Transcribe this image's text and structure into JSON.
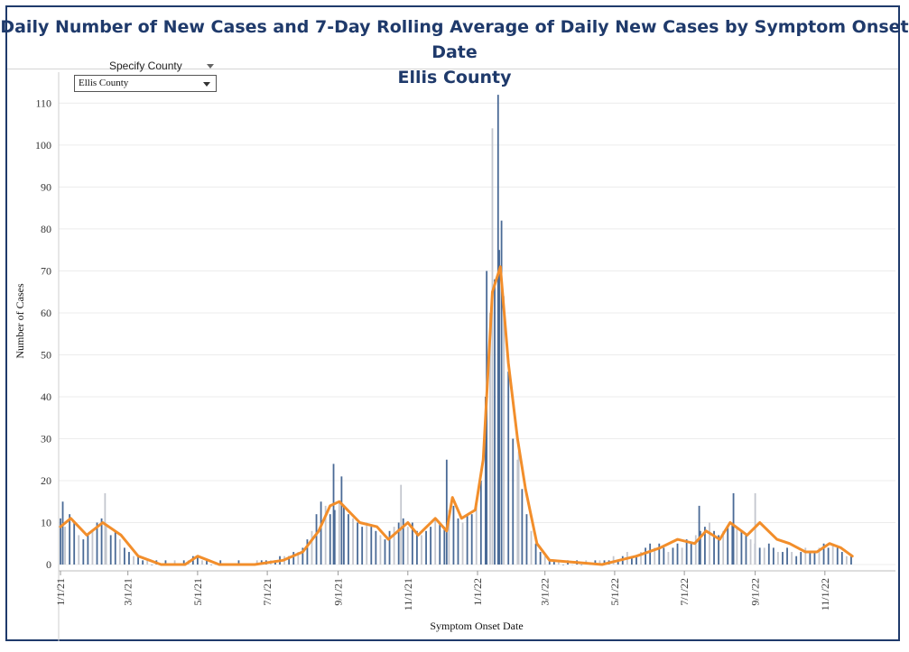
{
  "title": {
    "line1": "Daily Number of New Cases and 7-Day Rolling Average of Daily New Cases by Symptom Onset Date",
    "line2": "Ellis County"
  },
  "filter": {
    "label": "Specify County",
    "selected": "Ellis County"
  },
  "colors": {
    "title": "#1f3a6b",
    "bar_dark": "#4a6a96",
    "bar_light": "#c3c6ce",
    "avg_line": "#f28e2b"
  },
  "chart_data": {
    "type": "bar",
    "xlabel": "Symptom Onset Date",
    "ylabel": "Number of Cases",
    "ylim": [
      0,
      115
    ],
    "yticks": [
      0,
      10,
      20,
      30,
      40,
      50,
      60,
      70,
      80,
      90,
      100,
      110
    ],
    "x_range": [
      "2021-01-01",
      "2022-11-28"
    ],
    "xticks": [
      {
        "date": "2021-01-01",
        "label": "1/1/21"
      },
      {
        "date": "2021-03-01",
        "label": "3/1/21"
      },
      {
        "date": "2021-05-01",
        "label": "5/1/21"
      },
      {
        "date": "2021-07-01",
        "label": "7/1/21"
      },
      {
        "date": "2021-09-01",
        "label": "9/1/21"
      },
      {
        "date": "2021-11-01",
        "label": "11/1/21"
      },
      {
        "date": "2022-01-01",
        "label": "1/1/22"
      },
      {
        "date": "2022-03-01",
        "label": "3/1/22"
      },
      {
        "date": "2022-05-01",
        "label": "5/1/22"
      },
      {
        "date": "2022-07-01",
        "label": "7/1/22"
      },
      {
        "date": "2022-09-01",
        "label": "9/1/22"
      },
      {
        "date": "2022-11-01",
        "label": "11/1/22"
      }
    ],
    "grid": true,
    "series": [
      {
        "kind": "bar",
        "points": [
          [
            "2021-01-01",
            11
          ],
          [
            "2021-01-05",
            9
          ],
          [
            "2021-01-09",
            12
          ],
          [
            "2021-01-13",
            10
          ],
          [
            "2021-01-17",
            7
          ],
          [
            "2021-01-21",
            6
          ],
          [
            "2021-01-25",
            7
          ],
          [
            "2021-01-29",
            8
          ],
          [
            "2021-02-02",
            10
          ],
          [
            "2021-02-06",
            11
          ],
          [
            "2021-02-10",
            9
          ],
          [
            "2021-02-14",
            7
          ],
          [
            "2021-02-18",
            8
          ],
          [
            "2021-02-22",
            6
          ],
          [
            "2021-02-26",
            4
          ],
          [
            "2021-03-02",
            3
          ],
          [
            "2021-03-06",
            2
          ],
          [
            "2021-03-10",
            2
          ],
          [
            "2021-03-14",
            1
          ],
          [
            "2021-03-18",
            1
          ],
          [
            "2021-03-22",
            0
          ],
          [
            "2021-03-26",
            1
          ],
          [
            "2021-03-30",
            0
          ],
          [
            "2021-04-03",
            1
          ],
          [
            "2021-04-07",
            0
          ],
          [
            "2021-04-11",
            1
          ],
          [
            "2021-04-15",
            0
          ],
          [
            "2021-04-19",
            1
          ],
          [
            "2021-04-23",
            1
          ],
          [
            "2021-04-27",
            2
          ],
          [
            "2021-05-01",
            2
          ],
          [
            "2021-05-05",
            1
          ],
          [
            "2021-05-09",
            1
          ],
          [
            "2021-05-13",
            0
          ],
          [
            "2021-05-17",
            0
          ],
          [
            "2021-05-21",
            1
          ],
          [
            "2021-05-25",
            0
          ],
          [
            "2021-05-29",
            0
          ],
          [
            "2021-06-02",
            0
          ],
          [
            "2021-06-06",
            1
          ],
          [
            "2021-06-10",
            0
          ],
          [
            "2021-06-14",
            0
          ],
          [
            "2021-06-18",
            0
          ],
          [
            "2021-06-22",
            1
          ],
          [
            "2021-06-26",
            1
          ],
          [
            "2021-06-30",
            1
          ],
          [
            "2021-07-04",
            1
          ],
          [
            "2021-07-08",
            1
          ],
          [
            "2021-07-12",
            2
          ],
          [
            "2021-07-16",
            2
          ],
          [
            "2021-07-20",
            2
          ],
          [
            "2021-07-24",
            3
          ],
          [
            "2021-07-28",
            3
          ],
          [
            "2021-08-01",
            4
          ],
          [
            "2021-08-05",
            6
          ],
          [
            "2021-08-09",
            8
          ],
          [
            "2021-08-13",
            12
          ],
          [
            "2021-08-17",
            15
          ],
          [
            "2021-08-21",
            14
          ],
          [
            "2021-08-25",
            12
          ],
          [
            "2021-08-29",
            13
          ],
          [
            "2021-09-02",
            15
          ],
          [
            "2021-09-06",
            14
          ],
          [
            "2021-09-10",
            12
          ],
          [
            "2021-09-14",
            11
          ],
          [
            "2021-09-18",
            10
          ],
          [
            "2021-09-22",
            9
          ],
          [
            "2021-09-26",
            10
          ],
          [
            "2021-09-30",
            9
          ],
          [
            "2021-10-04",
            8
          ],
          [
            "2021-10-08",
            7
          ],
          [
            "2021-10-12",
            6
          ],
          [
            "2021-10-16",
            8
          ],
          [
            "2021-10-20",
            9
          ],
          [
            "2021-10-24",
            10
          ],
          [
            "2021-10-28",
            11
          ],
          [
            "2021-11-01",
            9
          ],
          [
            "2021-11-05",
            10
          ],
          [
            "2021-11-09",
            8
          ],
          [
            "2021-11-13",
            7
          ],
          [
            "2021-11-17",
            8
          ],
          [
            "2021-11-21",
            9
          ],
          [
            "2021-11-25",
            11
          ],
          [
            "2021-11-29",
            10
          ],
          [
            "2021-12-03",
            9
          ],
          [
            "2021-12-07",
            13
          ],
          [
            "2021-12-11",
            14
          ],
          [
            "2021-12-15",
            11
          ],
          [
            "2021-12-19",
            10
          ],
          [
            "2021-12-23",
            12
          ],
          [
            "2021-12-27",
            12
          ],
          [
            "2021-12-31",
            14
          ],
          [
            "2022-01-04",
            20
          ],
          [
            "2022-01-08",
            40
          ],
          [
            "2022-01-12",
            60
          ],
          [
            "2022-01-16",
            68
          ],
          [
            "2022-01-20",
            75
          ],
          [
            "2022-01-24",
            64
          ],
          [
            "2022-01-28",
            46
          ],
          [
            "2022-02-01",
            30
          ],
          [
            "2022-02-05",
            25
          ],
          [
            "2022-02-09",
            18
          ],
          [
            "2022-02-13",
            12
          ],
          [
            "2022-02-17",
            8
          ],
          [
            "2022-02-21",
            5
          ],
          [
            "2022-02-25",
            3
          ],
          [
            "2022-03-01",
            2
          ],
          [
            "2022-03-05",
            1
          ],
          [
            "2022-03-09",
            1
          ],
          [
            "2022-03-13",
            1
          ],
          [
            "2022-03-17",
            0
          ],
          [
            "2022-03-21",
            1
          ],
          [
            "2022-03-25",
            0
          ],
          [
            "2022-03-29",
            1
          ],
          [
            "2022-04-02",
            0
          ],
          [
            "2022-04-06",
            1
          ],
          [
            "2022-04-10",
            0
          ],
          [
            "2022-04-14",
            1
          ],
          [
            "2022-04-18",
            1
          ],
          [
            "2022-04-22",
            1
          ],
          [
            "2022-04-26",
            1
          ],
          [
            "2022-04-30",
            2
          ],
          [
            "2022-05-04",
            1
          ],
          [
            "2022-05-08",
            2
          ],
          [
            "2022-05-12",
            3
          ],
          [
            "2022-05-16",
            2
          ],
          [
            "2022-05-20",
            2
          ],
          [
            "2022-05-24",
            3
          ],
          [
            "2022-05-28",
            4
          ],
          [
            "2022-06-01",
            5
          ],
          [
            "2022-06-05",
            4
          ],
          [
            "2022-06-09",
            5
          ],
          [
            "2022-06-13",
            4
          ],
          [
            "2022-06-17",
            3
          ],
          [
            "2022-06-21",
            4
          ],
          [
            "2022-06-25",
            5
          ],
          [
            "2022-06-29",
            4
          ],
          [
            "2022-07-03",
            6
          ],
          [
            "2022-07-07",
            5
          ],
          [
            "2022-07-11",
            7
          ],
          [
            "2022-07-15",
            8
          ],
          [
            "2022-07-19",
            9
          ],
          [
            "2022-07-23",
            10
          ],
          [
            "2022-07-27",
            8
          ],
          [
            "2022-07-31",
            7
          ],
          [
            "2022-08-04",
            8
          ],
          [
            "2022-08-08",
            9
          ],
          [
            "2022-08-12",
            10
          ],
          [
            "2022-08-16",
            9
          ],
          [
            "2022-08-20",
            8
          ],
          [
            "2022-08-24",
            7
          ],
          [
            "2022-08-28",
            6
          ],
          [
            "2022-09-01",
            5
          ],
          [
            "2022-09-05",
            4
          ],
          [
            "2022-09-09",
            4
          ],
          [
            "2022-09-13",
            5
          ],
          [
            "2022-09-17",
            4
          ],
          [
            "2022-09-21",
            3
          ],
          [
            "2022-09-25",
            3
          ],
          [
            "2022-09-29",
            4
          ],
          [
            "2022-10-03",
            3
          ],
          [
            "2022-10-07",
            2
          ],
          [
            "2022-10-11",
            3
          ],
          [
            "2022-10-15",
            4
          ],
          [
            "2022-10-19",
            3
          ],
          [
            "2022-10-23",
            3
          ],
          [
            "2022-10-27",
            4
          ],
          [
            "2022-10-31",
            5
          ],
          [
            "2022-11-04",
            4
          ],
          [
            "2022-11-08",
            5
          ],
          [
            "2022-11-12",
            4
          ],
          [
            "2022-11-16",
            3
          ],
          [
            "2022-11-20",
            2
          ],
          [
            "2022-11-24",
            2
          ],
          [
            "2021-01-03",
            15
          ],
          [
            "2021-02-09",
            17
          ],
          [
            "2021-08-28",
            24
          ],
          [
            "2021-09-04",
            21
          ],
          [
            "2021-10-26",
            19
          ],
          [
            "2021-12-05",
            25
          ],
          [
            "2022-01-09",
            70
          ],
          [
            "2022-01-14",
            104
          ],
          [
            "2022-01-19",
            112
          ],
          [
            "2022-01-22",
            82
          ],
          [
            "2022-02-06",
            27
          ],
          [
            "2022-07-14",
            14
          ],
          [
            "2022-08-13",
            17
          ],
          [
            "2022-09-01",
            17
          ]
        ]
      },
      {
        "kind": "line",
        "points": [
          [
            "2021-01-01",
            9
          ],
          [
            "2021-01-10",
            11
          ],
          [
            "2021-01-24",
            7
          ],
          [
            "2021-02-07",
            10
          ],
          [
            "2021-02-23",
            7
          ],
          [
            "2021-03-10",
            2
          ],
          [
            "2021-03-30",
            0
          ],
          [
            "2021-04-20",
            0
          ],
          [
            "2021-05-01",
            2
          ],
          [
            "2021-05-20",
            0
          ],
          [
            "2021-06-20",
            0
          ],
          [
            "2021-07-15",
            1
          ],
          [
            "2021-08-01",
            3
          ],
          [
            "2021-08-15",
            8
          ],
          [
            "2021-08-25",
            14
          ],
          [
            "2021-09-02",
            15
          ],
          [
            "2021-09-20",
            10
          ],
          [
            "2021-10-05",
            9
          ],
          [
            "2021-10-15",
            6
          ],
          [
            "2021-11-01",
            10
          ],
          [
            "2021-11-10",
            7
          ],
          [
            "2021-11-25",
            11
          ],
          [
            "2021-12-05",
            8
          ],
          [
            "2021-12-10",
            16
          ],
          [
            "2021-12-18",
            11
          ],
          [
            "2021-12-30",
            13
          ],
          [
            "2022-01-06",
            25
          ],
          [
            "2022-01-14",
            65
          ],
          [
            "2022-01-21",
            71
          ],
          [
            "2022-01-28",
            48
          ],
          [
            "2022-02-05",
            30
          ],
          [
            "2022-02-12",
            18
          ],
          [
            "2022-02-22",
            5
          ],
          [
            "2022-03-05",
            1
          ],
          [
            "2022-04-20",
            0
          ],
          [
            "2022-05-05",
            1
          ],
          [
            "2022-05-20",
            2
          ],
          [
            "2022-06-10",
            4
          ],
          [
            "2022-06-25",
            6
          ],
          [
            "2022-07-10",
            5
          ],
          [
            "2022-07-20",
            8
          ],
          [
            "2022-08-01",
            6
          ],
          [
            "2022-08-10",
            10
          ],
          [
            "2022-08-25",
            7
          ],
          [
            "2022-09-05",
            10
          ],
          [
            "2022-09-20",
            6
          ],
          [
            "2022-10-01",
            5
          ],
          [
            "2022-10-15",
            3
          ],
          [
            "2022-10-25",
            3
          ],
          [
            "2022-11-05",
            5
          ],
          [
            "2022-11-15",
            4
          ],
          [
            "2022-11-25",
            2
          ]
        ]
      }
    ]
  }
}
